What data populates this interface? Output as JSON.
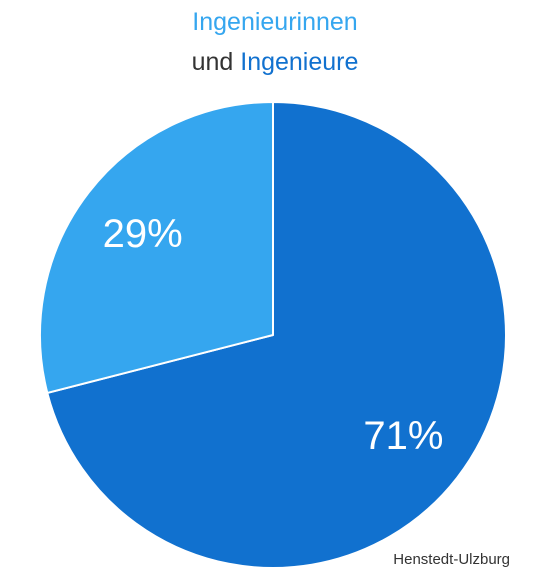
{
  "title": {
    "line1": "Ingenieurinnen",
    "line2_connector": "und",
    "line2_highlight": "Ingenieure"
  },
  "source_label": "Henstedt-Ulzburg",
  "colors": {
    "women": "#35a6ef",
    "men": "#1171cf",
    "text_dark": "#333333",
    "slice_label": "#ffffff",
    "slice_border": "#ffffff"
  },
  "chart_data": {
    "type": "pie",
    "title": "Ingenieurinnen und Ingenieure",
    "start_angle_deg": 0,
    "direction": "clockwise",
    "slices": [
      {
        "name": "Ingenieure",
        "value": 71,
        "label": "71%",
        "color": "#1171cf"
      },
      {
        "name": "Ingenieurinnen",
        "value": 29,
        "label": "29%",
        "color": "#35a6ef"
      }
    ]
  }
}
